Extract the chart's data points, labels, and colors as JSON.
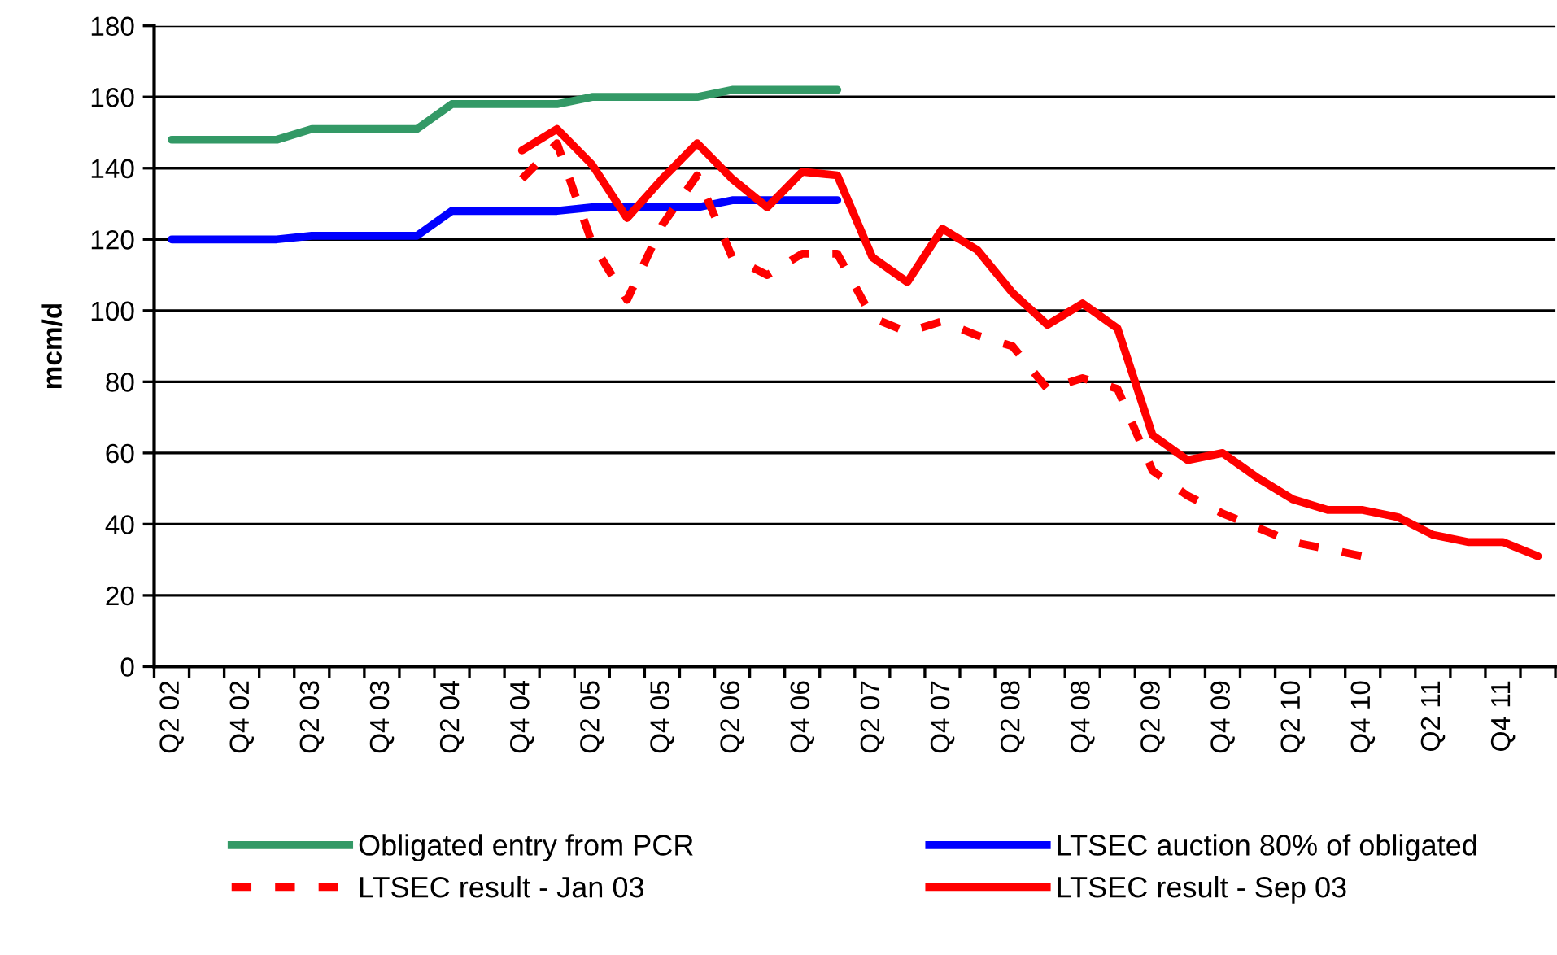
{
  "chart_data": {
    "type": "line",
    "ylabel": "mcm/d",
    "categories": [
      "Q2 02",
      null,
      "Q4 02",
      null,
      "Q2 03",
      null,
      "Q4 03",
      null,
      "Q2 04",
      null,
      "Q4 04",
      null,
      "Q2 05",
      null,
      "Q4 05",
      null,
      "Q2 06",
      null,
      "Q4 06",
      null,
      "Q2 07",
      null,
      "Q4 07",
      null,
      "Q2 08",
      null,
      "Q4 08",
      null,
      "Q2 09",
      null,
      "Q4 09",
      null,
      "Q2 10",
      null,
      "Q4 10",
      null,
      "Q2 11",
      null,
      "Q4 11",
      null
    ],
    "series": [
      {
        "name": "Obligated entry from PCR",
        "color": "#339966",
        "line_style": "solid",
        "values": [
          148,
          148,
          148,
          148,
          151,
          151,
          151,
          151,
          158,
          158,
          158,
          158,
          160,
          160,
          160,
          160,
          162,
          162,
          162,
          162,
          null,
          null,
          null,
          null,
          null,
          null,
          null,
          null,
          null,
          null,
          null,
          null,
          null,
          null,
          null,
          null,
          null,
          null,
          null,
          null
        ]
      },
      {
        "name": "LTSEC auction 80% of obligated",
        "color": "#0000ff",
        "line_style": "solid",
        "values": [
          120,
          120,
          120,
          120,
          121,
          121,
          121,
          121,
          128,
          128,
          128,
          128,
          129,
          129,
          129,
          129,
          131,
          131,
          131,
          131,
          null,
          null,
          null,
          null,
          null,
          null,
          null,
          null,
          null,
          null,
          null,
          null,
          null,
          null,
          null,
          null,
          null,
          null,
          null,
          null
        ]
      },
      {
        "name": "LTSEC result - Jan 03",
        "color": "#ff0000",
        "line_style": "dashed",
        "values": [
          null,
          null,
          null,
          null,
          null,
          null,
          null,
          null,
          null,
          null,
          137,
          147,
          119,
          103,
          124,
          138,
          115,
          110,
          116,
          116,
          98,
          94,
          97,
          93,
          90,
          78,
          81,
          78,
          55,
          48,
          43,
          39,
          35,
          33,
          31,
          null,
          null,
          null,
          null,
          null
        ]
      },
      {
        "name": "LTSEC result - Sep 03",
        "color": "#ff0000",
        "line_style": "solid",
        "values": [
          null,
          null,
          null,
          null,
          null,
          null,
          null,
          null,
          null,
          null,
          145,
          151,
          141,
          126,
          137,
          147,
          137,
          129,
          139,
          138,
          115,
          108,
          123,
          117,
          105,
          96,
          102,
          95,
          65,
          58,
          60,
          53,
          47,
          44,
          44,
          42,
          37,
          35,
          35,
          31
        ]
      }
    ],
    "ylim": [
      0,
      180
    ],
    "yticks": [
      0,
      20,
      40,
      60,
      80,
      100,
      120,
      140,
      160,
      180
    ],
    "grid": "y",
    "legend": "bottom"
  }
}
